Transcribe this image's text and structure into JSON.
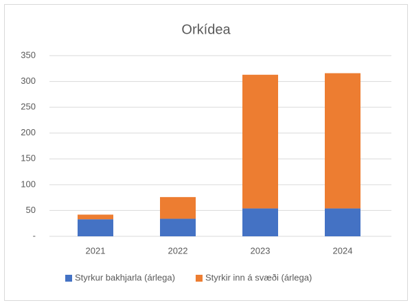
{
  "chart_data": {
    "type": "stacked-bar",
    "title": "Orkídea",
    "categories": [
      "2021",
      "2022",
      "2023",
      "2024"
    ],
    "series": [
      {
        "name": "Styrkur bakhjarla (árlega)",
        "color": "#4472c4",
        "values": [
          33,
          34,
          54,
          54
        ]
      },
      {
        "name": "Styrkir inn á svæði (árlega)",
        "color": "#ed7d31",
        "values": [
          9,
          42,
          259,
          262
        ]
      }
    ],
    "ylim": [
      0,
      350
    ],
    "yticks": [
      {
        "value": 0,
        "label": "-"
      },
      50,
      100,
      150,
      200,
      250,
      300,
      350
    ],
    "grid": true,
    "legend": "bottom"
  }
}
